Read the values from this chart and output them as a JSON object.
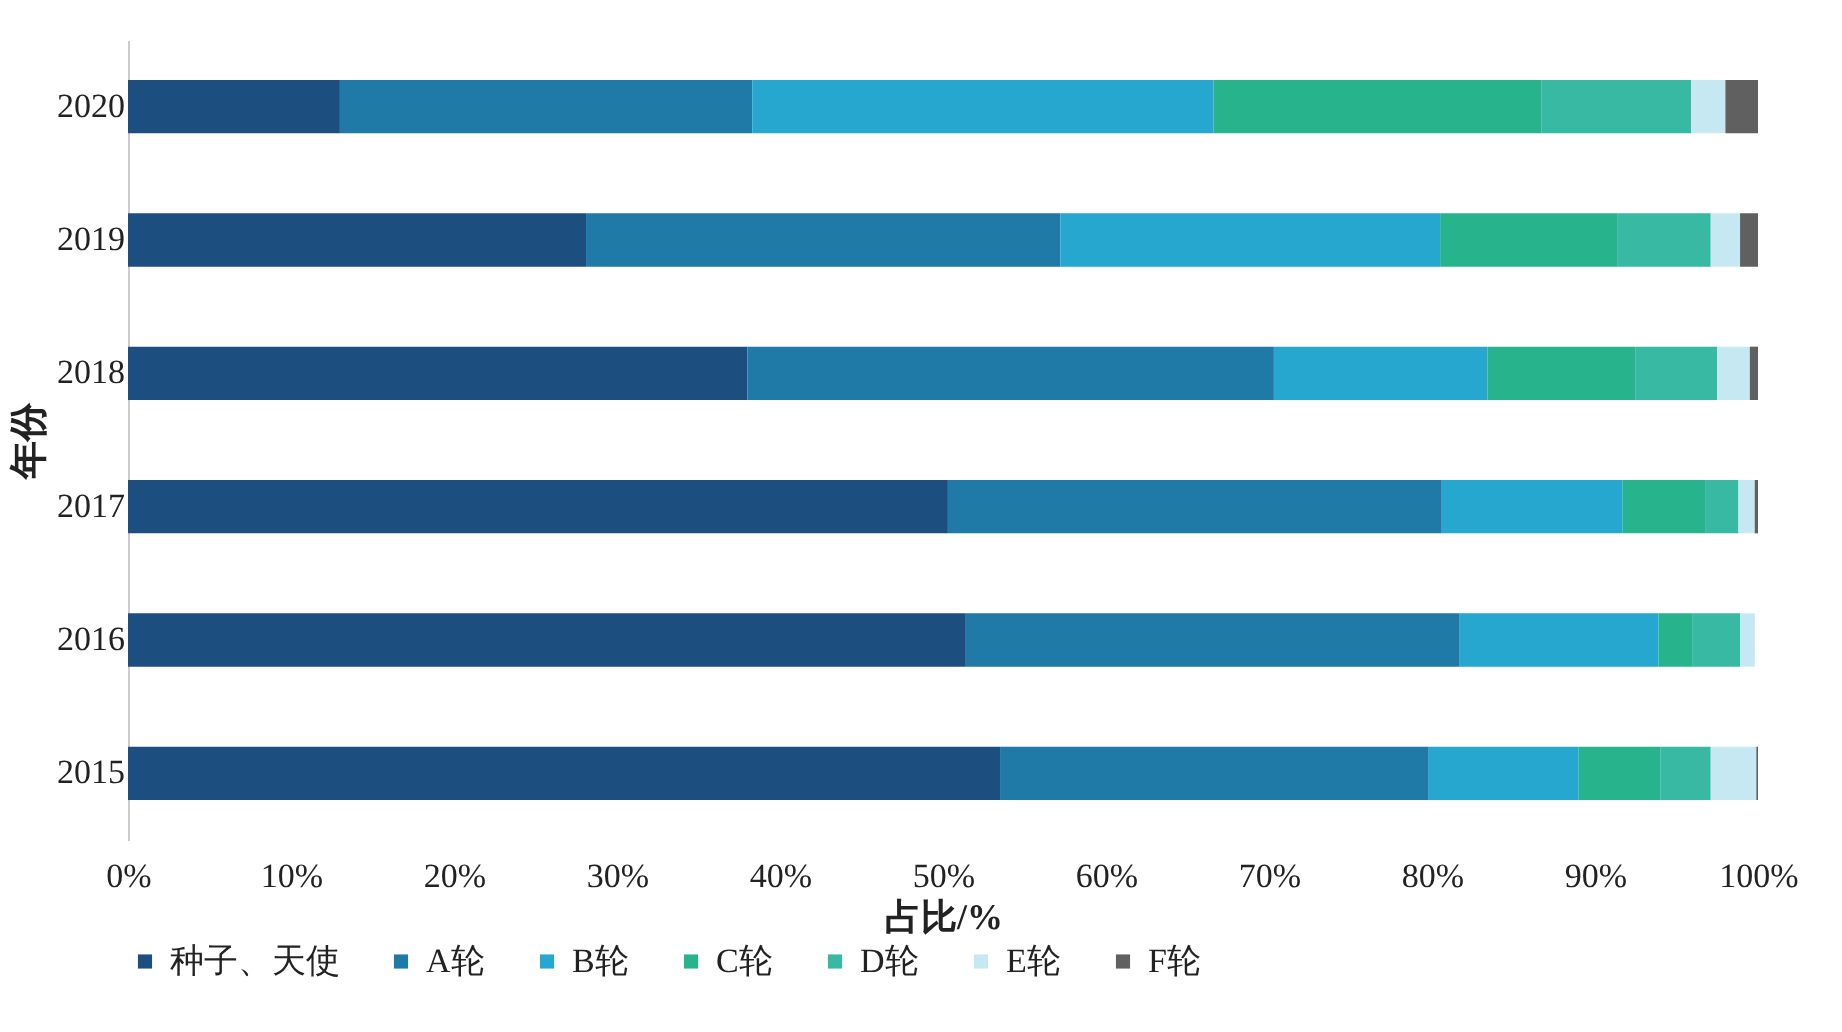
{
  "chart_data": {
    "type": "bar",
    "orientation": "horizontal",
    "stacked": true,
    "xlabel": "占比/%",
    "ylabel": "年份",
    "categories": [
      "2020",
      "2019",
      "2018",
      "2017",
      "2016",
      "2015"
    ],
    "series": [
      {
        "name": "种子、天使",
        "color": "#1c4e80",
        "values": [
          13.0,
          28.1,
          38.0,
          50.3,
          51.4,
          53.5
        ]
      },
      {
        "name": "A轮",
        "color": "#1f7aa8",
        "values": [
          25.3,
          29.1,
          32.3,
          30.3,
          30.3,
          26.3
        ]
      },
      {
        "name": "B轮",
        "color": "#25a7d0",
        "values": [
          28.3,
          23.3,
          13.1,
          11.1,
          12.2,
          9.2
        ]
      },
      {
        "name": "C轮",
        "color": "#27b48c",
        "values": [
          20.1,
          10.9,
          9.1,
          5.1,
          2.1,
          5.0
        ]
      },
      {
        "name": "D轮",
        "color": "#37b9a3",
        "values": [
          9.2,
          5.7,
          5.0,
          2.0,
          2.9,
          3.1
        ]
      },
      {
        "name": "E轮",
        "color": "#c5e8f3",
        "values": [
          2.1,
          1.8,
          2.0,
          1.0,
          0.9,
          2.8
        ]
      },
      {
        "name": "F轮",
        "color": "#606060",
        "values": [
          2.0,
          1.1,
          0.5,
          0.2,
          0,
          0.1
        ]
      }
    ],
    "xlim": [
      0,
      100
    ],
    "xticks": [
      {
        "value": 0,
        "label": "0%"
      },
      {
        "value": 10,
        "label": "10%"
      },
      {
        "value": 20,
        "label": "20%"
      },
      {
        "value": 30,
        "label": "30%"
      },
      {
        "value": 40,
        "label": "40%"
      },
      {
        "value": 50,
        "label": "50%"
      },
      {
        "value": 60,
        "label": "60%"
      },
      {
        "value": 70,
        "label": "70%"
      },
      {
        "value": 80,
        "label": "80%"
      },
      {
        "value": 90,
        "label": "90%"
      },
      {
        "value": 100,
        "label": "100%"
      }
    ],
    "grid": false,
    "legend": "bottom"
  }
}
